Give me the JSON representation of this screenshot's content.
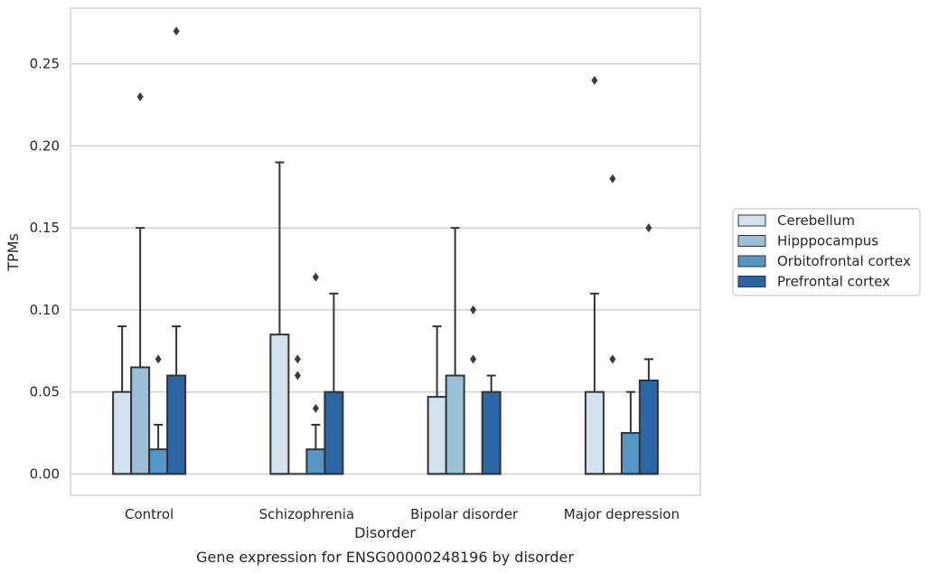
{
  "chart_data": {
    "type": "box",
    "title": "Gene expression for ENSG00000248196 by disorder",
    "xlabel": "Disorder",
    "ylabel": "TPMs",
    "ylim": [
      -0.013,
      0.284
    ],
    "yticks": [
      "0.00",
      "0.05",
      "0.10",
      "0.15",
      "0.20",
      "0.25"
    ],
    "grid": "horizontal",
    "legend_position": "right",
    "categories": [
      "Control",
      "Schizophrenia",
      "Bipolar disorder",
      "Major depression"
    ],
    "series": [
      {
        "name": "Cerebellum",
        "color": "#d4e2f0",
        "boxes": [
          {
            "min": 0.0,
            "q1": 0.0,
            "median": 0.0,
            "q3": 0.05,
            "max": 0.09,
            "outliers": []
          },
          {
            "min": 0.0,
            "q1": 0.0,
            "median": 0.0,
            "q3": 0.085,
            "max": 0.19,
            "outliers": []
          },
          {
            "min": 0.0,
            "q1": 0.0,
            "median": 0.0,
            "q3": 0.047,
            "max": 0.09,
            "outliers": []
          },
          {
            "min": 0.0,
            "q1": 0.0,
            "median": 0.0,
            "q3": 0.05,
            "max": 0.11,
            "outliers": [
              0.24
            ]
          }
        ]
      },
      {
        "name": "Hipppocampus",
        "color": "#9ac0d8",
        "boxes": [
          {
            "min": 0.0,
            "q1": 0.0,
            "median": 0.0,
            "q3": 0.065,
            "max": 0.15,
            "outliers": [
              0.23
            ]
          },
          {
            "min": 0.0,
            "q1": 0.0,
            "median": 0.0,
            "q3": 0.0,
            "max": 0.0,
            "outliers": [
              0.07,
              0.06
            ]
          },
          {
            "min": 0.0,
            "q1": 0.0,
            "median": 0.0,
            "q3": 0.06,
            "max": 0.15,
            "outliers": []
          },
          {
            "min": 0.0,
            "q1": 0.0,
            "median": 0.0,
            "q3": 0.0,
            "max": 0.0,
            "outliers": [
              0.18,
              0.07
            ]
          }
        ]
      },
      {
        "name": "Orbitofrontal cortex",
        "color": "#5596c4",
        "boxes": [
          {
            "min": 0.0,
            "q1": 0.0,
            "median": 0.0,
            "q3": 0.015,
            "max": 0.03,
            "outliers": [
              0.07
            ]
          },
          {
            "min": 0.0,
            "q1": 0.0,
            "median": 0.0,
            "q3": 0.015,
            "max": 0.03,
            "outliers": [
              0.12,
              0.04
            ]
          },
          {
            "min": 0.0,
            "q1": 0.0,
            "median": 0.0,
            "q3": 0.0,
            "max": 0.0,
            "outliers": [
              0.1,
              0.07
            ]
          },
          {
            "min": 0.0,
            "q1": 0.0,
            "median": 0.0,
            "q3": 0.025,
            "max": 0.05,
            "outliers": []
          }
        ]
      },
      {
        "name": "Prefrontal cortex",
        "color": "#2a66a3",
        "boxes": [
          {
            "min": 0.0,
            "q1": 0.0,
            "median": 0.0,
            "q3": 0.06,
            "max": 0.09,
            "outliers": [
              0.27
            ]
          },
          {
            "min": 0.0,
            "q1": 0.0,
            "median": 0.0,
            "q3": 0.05,
            "max": 0.11,
            "outliers": []
          },
          {
            "min": 0.0,
            "q1": 0.0,
            "median": 0.0,
            "q3": 0.05,
            "max": 0.06,
            "outliers": []
          },
          {
            "min": 0.0,
            "q1": 0.0,
            "median": 0.0,
            "q3": 0.057,
            "max": 0.07,
            "outliers": [
              0.15
            ]
          }
        ]
      }
    ]
  }
}
